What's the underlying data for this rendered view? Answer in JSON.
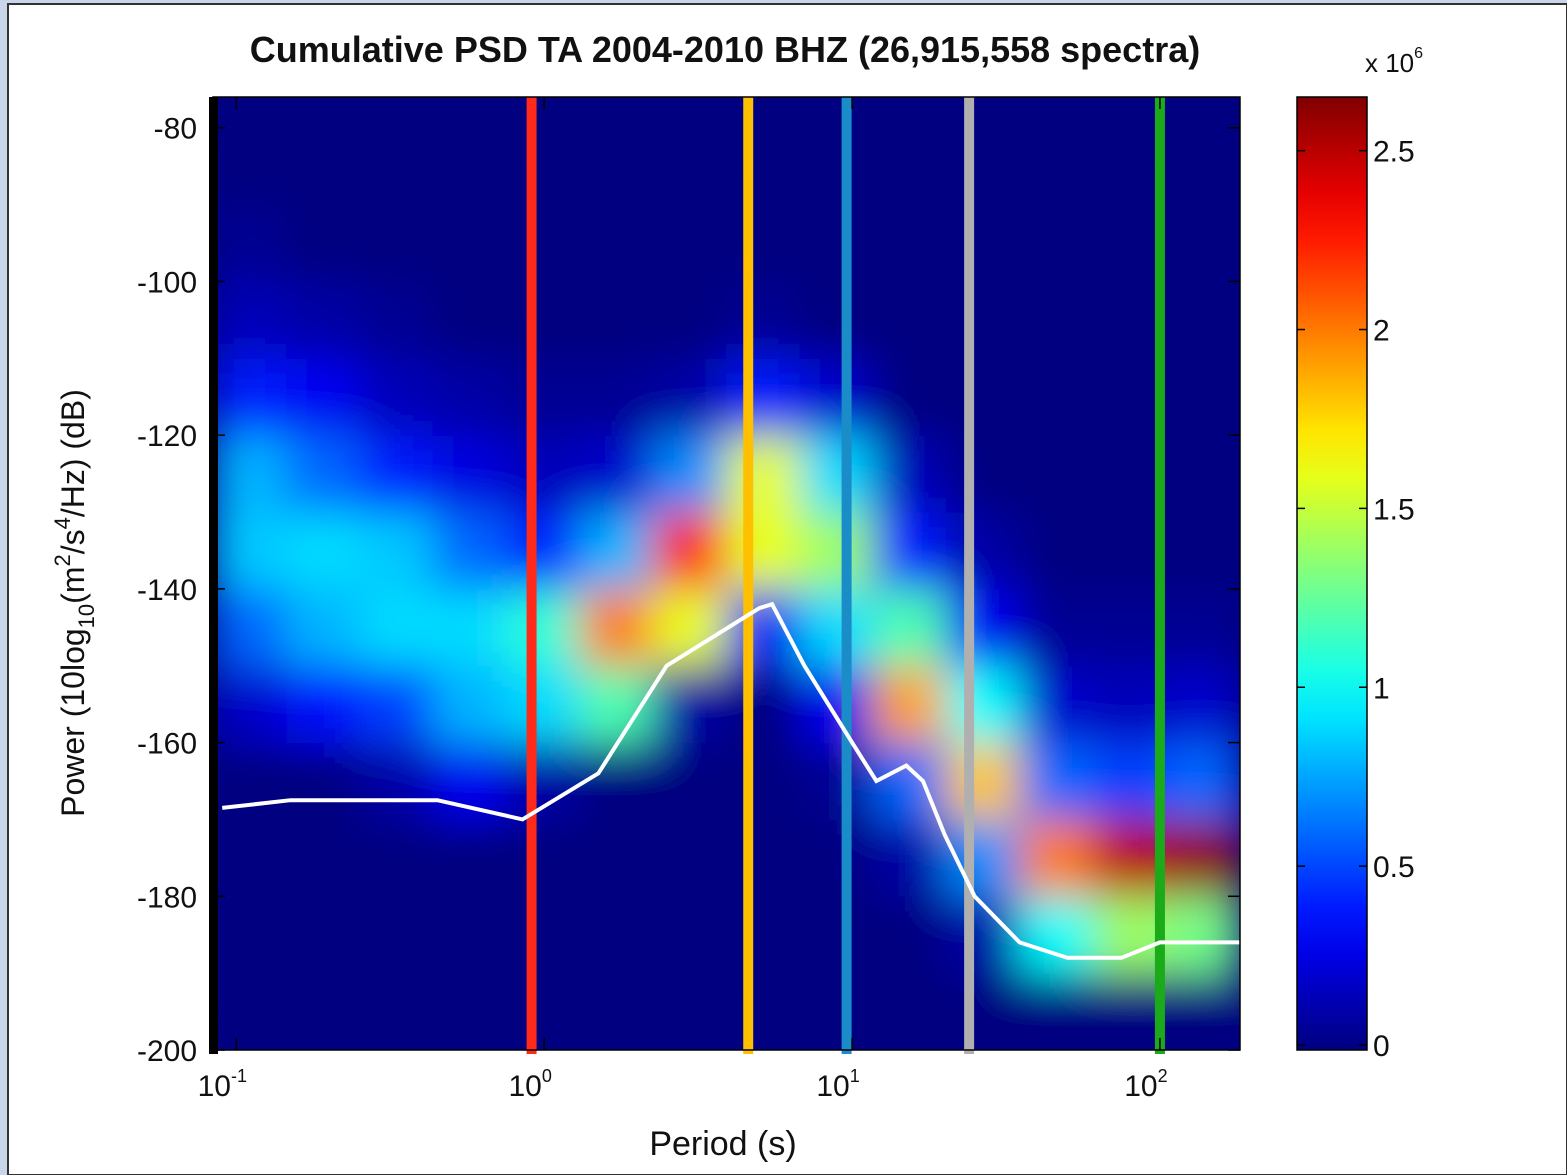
{
  "chart_data": {
    "type": "heatmap",
    "title": "Cumulative PSD TA 2004-2010 BHZ (26,915,558 spectra)",
    "xlabel": "Period (s)",
    "ylabel_parts": [
      "Power (10log",
      "10",
      "(m",
      "2",
      "/s",
      "4",
      "/Hz) (dB)"
    ],
    "xscale": "log",
    "xlim": [
      0.084,
      182
    ],
    "ylim": [
      -200,
      -76
    ],
    "xticks": [
      {
        "value": 0.1,
        "label": "10",
        "exponent": "-1"
      },
      {
        "value": 1,
        "label": "10",
        "exponent": "0"
      },
      {
        "value": 10,
        "label": "10",
        "exponent": "1"
      },
      {
        "value": 100,
        "label": "10",
        "exponent": "2"
      }
    ],
    "yticks": [
      -200,
      -180,
      -160,
      -140,
      -120,
      -100,
      -80
    ],
    "x_edges": [
      0.0841,
      0.1456,
      0.252,
      0.4365,
      0.755,
      1.306,
      2.26,
      3.91,
      6.77,
      11.72,
      20.28,
      35.1,
      60.7,
      105.1,
      182
    ],
    "y_edges": [
      -200,
      -190,
      -180,
      -170,
      -160,
      -150,
      -140,
      -130,
      -120,
      -110,
      -100,
      -90,
      -80
    ],
    "z": [
      [
        0,
        0,
        0,
        0,
        0,
        0,
        0,
        0,
        0,
        0,
        0,
        0,
        0,
        0
      ],
      [
        0,
        0,
        0,
        0,
        0,
        0,
        0,
        0,
        0,
        0,
        0.1,
        1.0,
        1.4,
        1.3
      ],
      [
        0,
        0,
        0,
        0,
        0,
        0,
        0,
        0,
        0,
        0.1,
        0.7,
        2.0,
        2.5,
        2.6
      ],
      [
        0,
        0,
        0.1,
        0.3,
        0.1,
        0,
        0,
        0,
        0.05,
        0.6,
        1.8,
        0.6,
        0.5,
        0.6
      ],
      [
        0.2,
        0.35,
        0.5,
        0.8,
        0.9,
        1.2,
        0.1,
        0,
        0.3,
        1.9,
        1.0,
        0.2,
        0.15,
        0.2
      ],
      [
        0.6,
        0.8,
        0.9,
        0.9,
        1.1,
        2.0,
        1.6,
        0.3,
        0.9,
        1.2,
        0.3,
        0.05,
        0.05,
        0.05
      ],
      [
        0.85,
        0.9,
        0.85,
        0.6,
        0.4,
        0.8,
        2.3,
        1.6,
        1.4,
        0.4,
        0.1,
        0,
        0,
        0
      ],
      [
        0.8,
        0.6,
        0.4,
        0.25,
        0.15,
        0.2,
        0.7,
        1.6,
        0.9,
        0.15,
        0,
        0,
        0,
        0
      ],
      [
        0.4,
        0.3,
        0.15,
        0.1,
        0.05,
        0.05,
        0.1,
        0.4,
        0.2,
        0,
        0,
        0,
        0,
        0
      ],
      [
        0.15,
        0.1,
        0.05,
        0,
        0,
        0,
        0,
        0.05,
        0,
        0,
        0,
        0,
        0,
        0
      ],
      [
        0.05,
        0,
        0,
        0,
        0,
        0,
        0,
        0,
        0,
        0,
        0,
        0,
        0,
        0
      ],
      [
        0,
        0,
        0,
        0,
        0,
        0,
        0,
        0,
        0,
        0,
        0,
        0,
        0,
        0
      ]
    ],
    "colorbar": {
      "colormap": "jet",
      "clim": [
        0,
        2.65
      ],
      "ticks": [
        0,
        0.5,
        1,
        1.5,
        2,
        2.5
      ],
      "multiplier": "x 10",
      "multiplier_exponent": "6"
    },
    "line": {
      "color": "#ffffff",
      "x": [
        0.09,
        0.15,
        0.45,
        0.85,
        1.5,
        2.5,
        5,
        5.5,
        7,
        10,
        12,
        15,
        17,
        20,
        25,
        35,
        50,
        75,
        100,
        182
      ],
      "y": [
        -168.5,
        -167.5,
        -167.5,
        -170,
        -164,
        -150,
        -142.5,
        -142,
        -150,
        -160,
        -165,
        -163,
        -165,
        -172,
        -180,
        -186,
        -188,
        -188,
        -186,
        -186
      ]
    },
    "vlines": [
      {
        "x": 0.91,
        "color": "#ff2a1a"
      },
      {
        "x": 4.6,
        "color": "#ffc000"
      },
      {
        "x": 9.6,
        "color": "#1a8cc8"
      },
      {
        "x": 24,
        "color": "#b0b0b0"
      },
      {
        "x": 100,
        "color": "#1aaa1a"
      }
    ]
  }
}
